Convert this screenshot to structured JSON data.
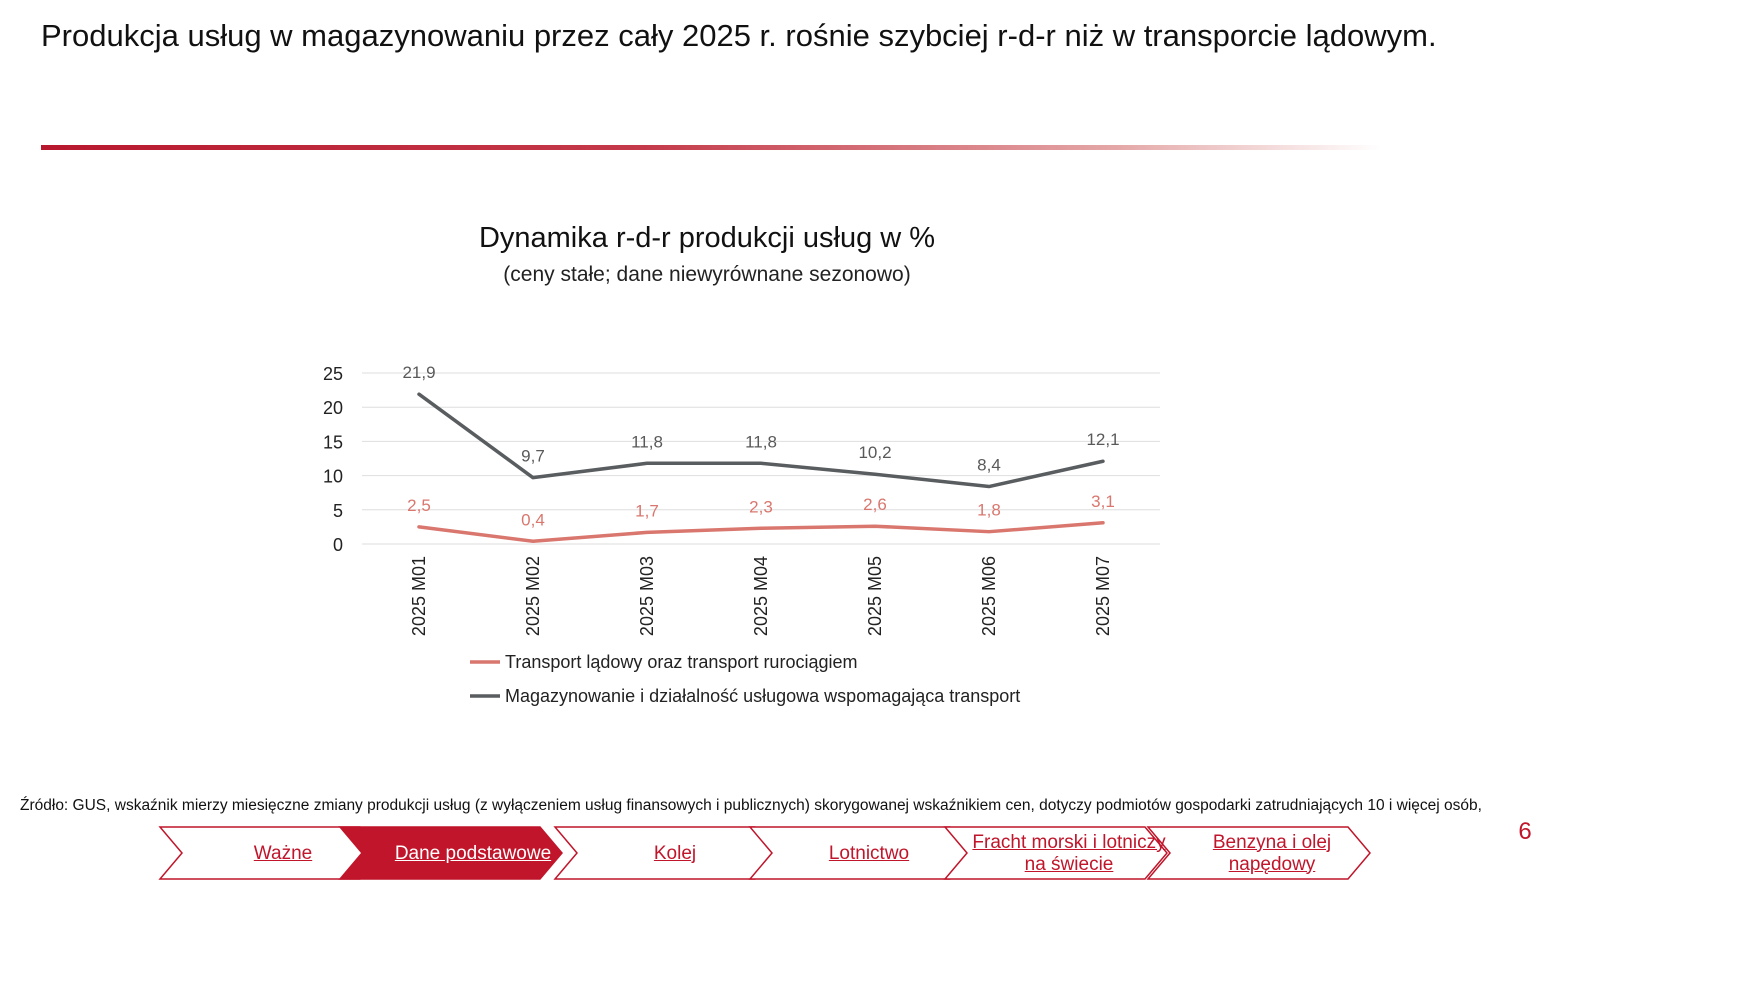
{
  "headline": "Produkcja usług w magazynowaniu przez cały 2025 r. rośnie szybciej r-d-r niż w transporcie lądowym.",
  "colors": {
    "accent": "#c0152a",
    "series_transport": "#d9776e",
    "series_magazyn": "#595d5f",
    "grid": "#dedede"
  },
  "chart_data": {
    "type": "line",
    "title": "Dynamika r-d-r produkcji usług w %",
    "subtitle": "(ceny stałe; dane niewyrównane sezonowo)",
    "categories": [
      "2025 M01",
      "2025 M02",
      "2025 M03",
      "2025 M04",
      "2025 M05",
      "2025 M06",
      "2025 M07"
    ],
    "yticks": [
      0,
      5,
      10,
      15,
      20,
      25
    ],
    "ylim": [
      0,
      25
    ],
    "grid": true,
    "legend_position": "bottom",
    "series": [
      {
        "name": "Transport lądowy oraz transport rurociągiem",
        "values": [
          2.5,
          0.4,
          1.7,
          2.3,
          2.6,
          1.8,
          3.1
        ],
        "labels": [
          "2,5",
          "0,4",
          "1,7",
          "2,3",
          "2,6",
          "1,8",
          "3,1"
        ]
      },
      {
        "name": "Magazynowanie i działalność usługowa wspomagająca transport",
        "values": [
          21.9,
          9.7,
          11.8,
          11.8,
          10.2,
          8.4,
          12.1
        ],
        "labels": [
          "21,9",
          "9,7",
          "11,8",
          "11,8",
          "10,2",
          "8,4",
          "12,1"
        ]
      }
    ]
  },
  "source": "Źródło: GUS, wskaźnik mierzy miesięczne zmiany produkcji usług (z wyłączeniem usług finansowych i publicznych) skorygowanej wskaźnikiem cen, dotyczy podmiotów gospodarki zatrudniających 10 i więcej osób,",
  "nav": {
    "items": [
      {
        "label": "Ważne",
        "active": false
      },
      {
        "label": "Dane podstawowe",
        "active": true
      },
      {
        "label": "Kolej",
        "active": false
      },
      {
        "label": "Lotnictwo",
        "active": false
      },
      {
        "label": "Fracht morski i lotniczy na świecie",
        "active": false
      },
      {
        "label": "Benzyna i olej napędowy",
        "active": false
      }
    ]
  },
  "page_number": "6"
}
